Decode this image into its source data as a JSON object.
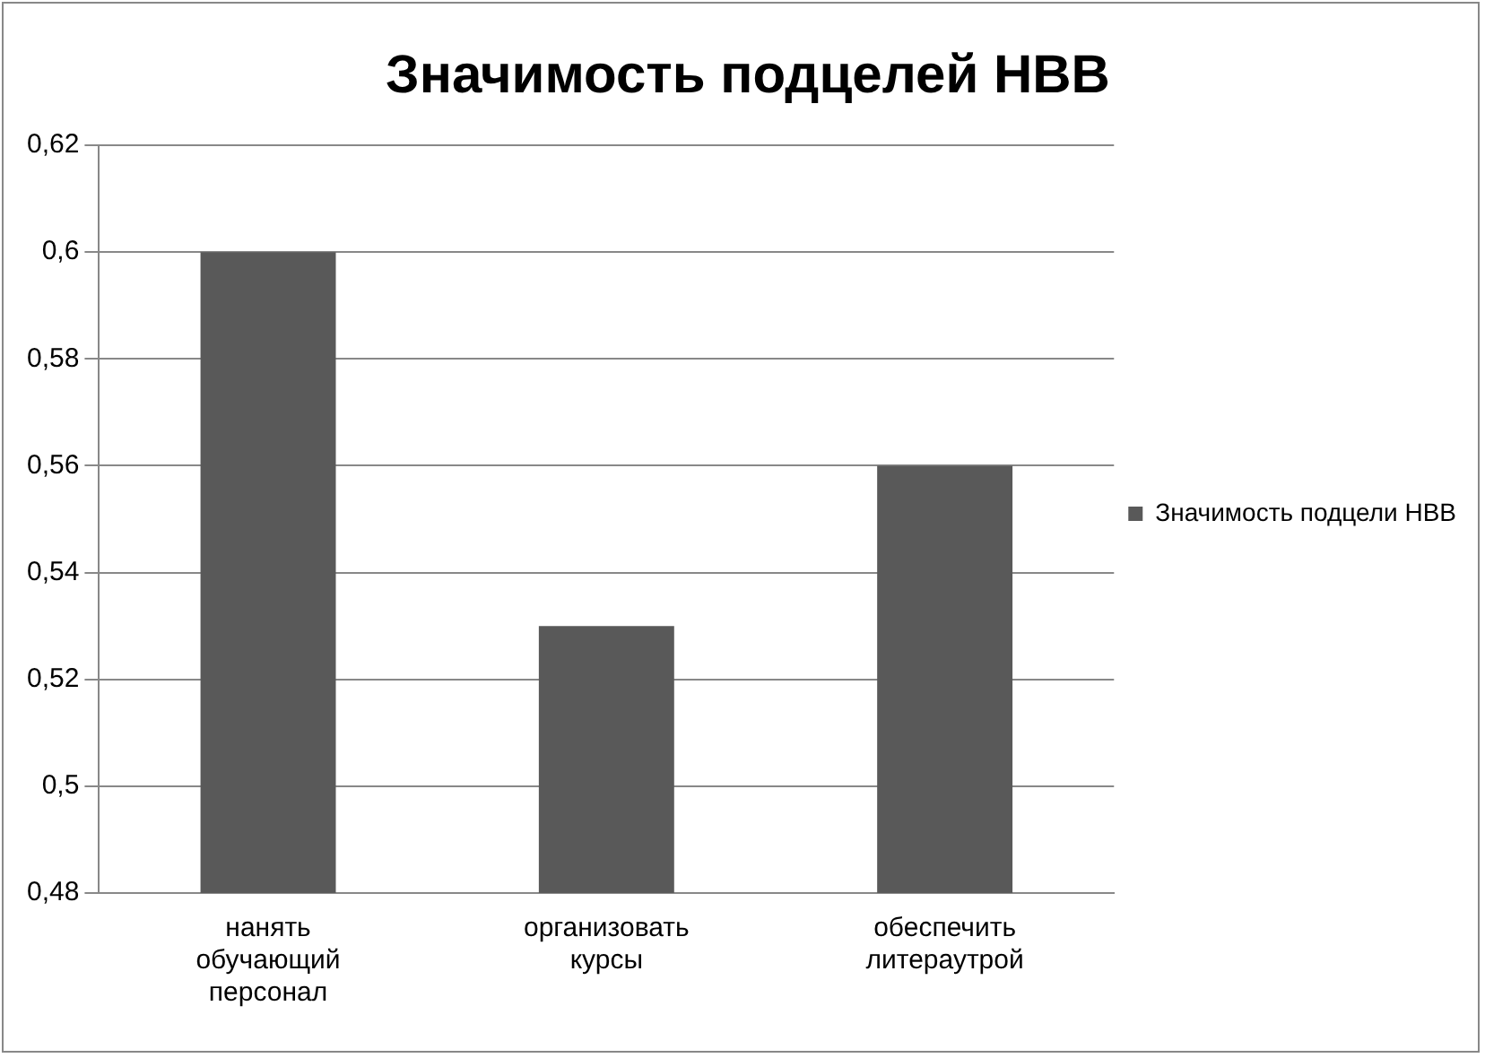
{
  "chart_data": {
    "type": "bar",
    "title": "Значимость подцелей НВВ",
    "categories": [
      "нанять обучающий персонал",
      "организовать курсы",
      "обеспечить литераутрой"
    ],
    "series": [
      {
        "name": "Значимость подцели НВВ",
        "color": "#595959",
        "values": [
          0.6,
          0.53,
          0.56
        ]
      }
    ],
    "ylim": [
      0.48,
      0.62
    ],
    "yticks": [
      {
        "value": 0.48,
        "label": "0,48"
      },
      {
        "value": 0.5,
        "label": "0,5"
      },
      {
        "value": 0.52,
        "label": "0,52"
      },
      {
        "value": 0.54,
        "label": "0,54"
      },
      {
        "value": 0.56,
        "label": "0,56"
      },
      {
        "value": 0.58,
        "label": "0,58"
      },
      {
        "value": 0.6,
        "label": "0,6"
      },
      {
        "value": 0.62,
        "label": "0,62"
      }
    ],
    "grid": "y",
    "legend": "right"
  }
}
